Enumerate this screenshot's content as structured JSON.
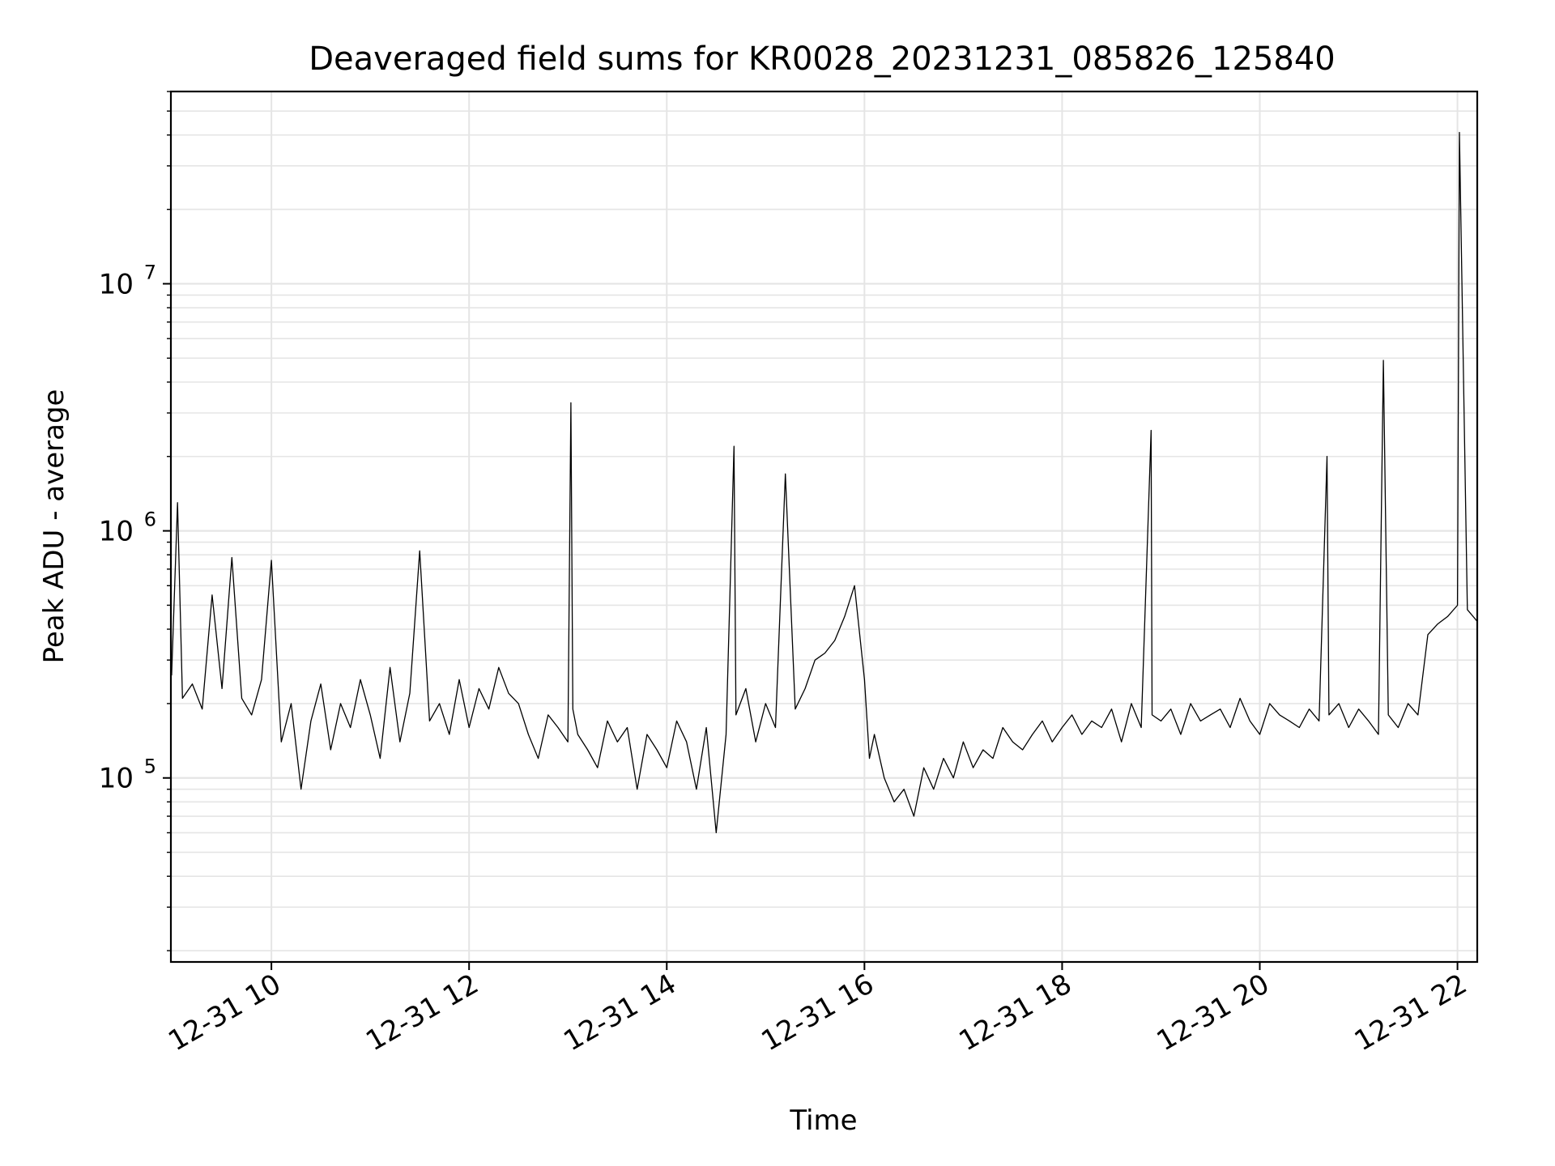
{
  "chart_data": {
    "type": "line",
    "title": "Deaveraged field sums for KR0028_20231231_085826_125840",
    "xlabel": "Time",
    "ylabel": "Peak ADU - average",
    "yscale": "log",
    "ylim": [
      18000,
      60000000
    ],
    "xlim_hours": [
      8.983,
      22.2
    ],
    "grid": true,
    "line_color": "#000000",
    "grid_color": "#e5e5e5",
    "x_ticks": [
      {
        "hour": 10,
        "label": "12-31 10"
      },
      {
        "hour": 12,
        "label": "12-31 12"
      },
      {
        "hour": 14,
        "label": "12-31 14"
      },
      {
        "hour": 16,
        "label": "12-31 16"
      },
      {
        "hour": 18,
        "label": "12-31 18"
      },
      {
        "hour": 20,
        "label": "12-31 20"
      },
      {
        "hour": 22,
        "label": "12-31 22"
      }
    ],
    "y_ticks": [
      {
        "value": 100000,
        "base": "10",
        "exp": "5"
      },
      {
        "value": 1000000,
        "base": "10",
        "exp": "6"
      },
      {
        "value": 10000000,
        "base": "10",
        "exp": "7"
      }
    ],
    "series": [
      {
        "x_hours": [
          8.99,
          9.05,
          9.1,
          9.2,
          9.3,
          9.4,
          9.5,
          9.6,
          9.7,
          9.8,
          9.9,
          10.0,
          10.1,
          10.2,
          10.3,
          10.4,
          10.5,
          10.6,
          10.7,
          10.8,
          10.9,
          11.0,
          11.1,
          11.2,
          11.3,
          11.4,
          11.5,
          11.6,
          11.7,
          11.8,
          11.9,
          12.0,
          12.1,
          12.2,
          12.3,
          12.4,
          12.5,
          12.6,
          12.7,
          12.8,
          12.9,
          13.0,
          13.03,
          13.05,
          13.1,
          13.2,
          13.3,
          13.4,
          13.5,
          13.6,
          13.7,
          13.8,
          13.9,
          14.0,
          14.1,
          14.2,
          14.3,
          14.4,
          14.5,
          14.6,
          14.68,
          14.7,
          14.8,
          14.9,
          15.0,
          15.1,
          15.2,
          15.3,
          15.4,
          15.5,
          15.6,
          15.7,
          15.8,
          15.9,
          16.0,
          16.05,
          16.1,
          16.2,
          16.3,
          16.4,
          16.5,
          16.6,
          16.7,
          16.8,
          16.9,
          17.0,
          17.1,
          17.2,
          17.3,
          17.4,
          17.5,
          17.6,
          17.7,
          17.8,
          17.9,
          18.0,
          18.1,
          18.2,
          18.3,
          18.4,
          18.5,
          18.6,
          18.7,
          18.8,
          18.9,
          18.91,
          19.0,
          19.1,
          19.2,
          19.3,
          19.4,
          19.5,
          19.6,
          19.7,
          19.8,
          19.9,
          20.0,
          20.1,
          20.2,
          20.3,
          20.4,
          20.5,
          20.6,
          20.68,
          20.7,
          20.8,
          20.9,
          21.0,
          21.1,
          21.2,
          21.25,
          21.3,
          21.4,
          21.5,
          21.6,
          21.7,
          21.8,
          21.9,
          22.0,
          22.02,
          22.1,
          22.2
        ],
        "values": [
          260000,
          1300000,
          210000,
          240000,
          190000,
          550000,
          230000,
          780000,
          210000,
          180000,
          250000,
          760000,
          140000,
          200000,
          90000,
          170000,
          240000,
          130000,
          200000,
          160000,
          250000,
          180000,
          120000,
          280000,
          140000,
          220000,
          830000,
          170000,
          200000,
          150000,
          250000,
          160000,
          230000,
          190000,
          280000,
          220000,
          200000,
          150000,
          120000,
          180000,
          160000,
          140000,
          3300000,
          190000,
          150000,
          130000,
          110000,
          170000,
          140000,
          160000,
          90000,
          150000,
          130000,
          110000,
          170000,
          140000,
          90000,
          160000,
          60000,
          150000,
          2200000,
          180000,
          230000,
          140000,
          200000,
          160000,
          1700000,
          190000,
          230000,
          300000,
          320000,
          360000,
          450000,
          600000,
          250000,
          120000,
          150000,
          100000,
          80000,
          90000,
          70000,
          110000,
          90000,
          120000,
          100000,
          140000,
          110000,
          130000,
          120000,
          160000,
          140000,
          130000,
          150000,
          170000,
          140000,
          160000,
          180000,
          150000,
          170000,
          160000,
          190000,
          140000,
          200000,
          160000,
          2550000,
          180000,
          170000,
          190000,
          150000,
          200000,
          170000,
          180000,
          190000,
          160000,
          210000,
          170000,
          150000,
          200000,
          180000,
          170000,
          160000,
          190000,
          170000,
          2000000,
          180000,
          200000,
          160000,
          190000,
          170000,
          150000,
          4900000,
          180000,
          160000,
          200000,
          180000,
          380000,
          420000,
          450000,
          500000,
          41000000,
          480000,
          430000
        ]
      }
    ]
  }
}
